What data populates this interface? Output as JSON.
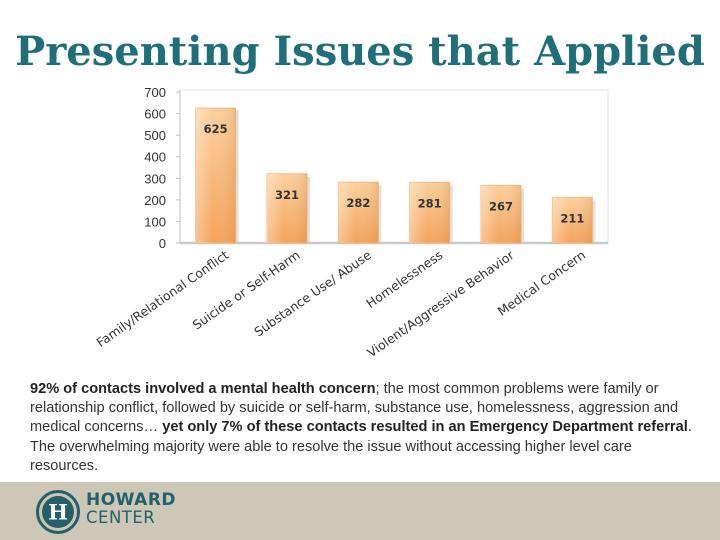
{
  "slide": {
    "title": "Presenting Issues that Applied"
  },
  "chart_data": {
    "type": "bar",
    "title": "Presenting Issues that Applied",
    "categories": [
      "Family/Relational Conflict",
      "Suicide or Self-Harm",
      "Substance Use/ Abuse",
      "Homelessness",
      "Violent/Aggressive Behavior",
      "Medical Concern"
    ],
    "values": [
      625,
      321,
      282,
      281,
      267,
      211
    ],
    "ylim": [
      0,
      700
    ],
    "yticks": [
      0,
      100,
      200,
      300,
      400,
      500,
      600,
      700
    ],
    "xlabel": "",
    "ylabel": "",
    "grid": false,
    "colors": {
      "bar_top": "#fbcf9c",
      "bar_bottom": "#f4a259",
      "bar_edge": "#f7b775",
      "shadow": "#c9c9c9"
    }
  },
  "caption": {
    "p1_bold": "92% of contacts involved a mental health concern",
    "p2": "; the most common problems were family or  relationship conflict, followed by suicide or self-harm, substance use, homelessness, aggression and    medical concerns… ",
    "p3_bold": "yet only 7% of these contacts resulted in an Emergency Department referral",
    "p4": ".  The overwhelming majority were able to resolve the issue without accessing higher level care resources."
  },
  "footer": {
    "brand_line1": "HOWARD",
    "brand_line2": "CENTER",
    "logo_letter": "H",
    "colors": {
      "band": "#ccc7b6",
      "brand": "#25606a"
    }
  }
}
